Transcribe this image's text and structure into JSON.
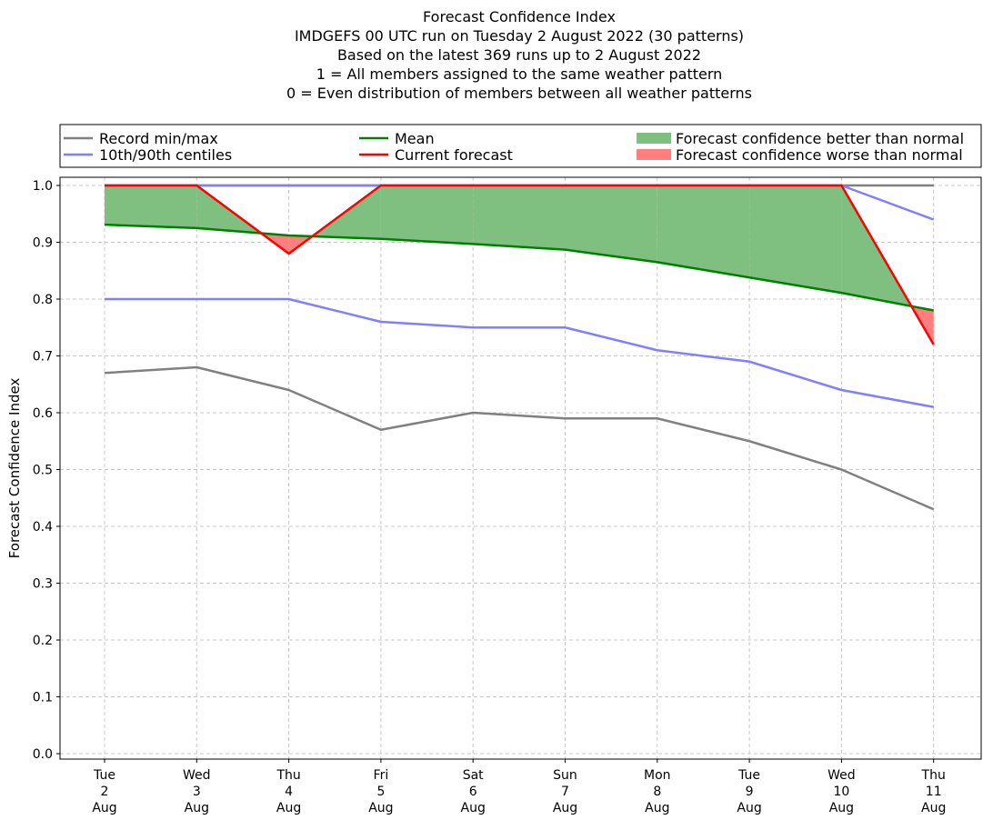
{
  "chart_data": {
    "type": "line",
    "title_lines": [
      "Forecast Confidence Index",
      "IMDGEFS 00 UTC run on Tuesday 2 August 2022 (30 patterns)",
      "Based on the latest 369 runs up to 2 August 2022",
      "1 = All members assigned to the same weather pattern",
      "0 = Even distribution of members between all weather patterns"
    ],
    "ylabel": "Forecast Confidence Index",
    "xlabel": "",
    "ylim": [
      0.0,
      1.0
    ],
    "yticks": [
      "0.0",
      "0.1",
      "0.2",
      "0.3",
      "0.4",
      "0.5",
      "0.6",
      "0.7",
      "0.8",
      "0.9",
      "1.0"
    ],
    "grid": true,
    "legend_position": "top, above plot",
    "categories": [
      [
        "Tue",
        "2",
        "Aug"
      ],
      [
        "Wed",
        "3",
        "Aug"
      ],
      [
        "Thu",
        "4",
        "Aug"
      ],
      [
        "Fri",
        "5",
        "Aug"
      ],
      [
        "Sat",
        "6",
        "Aug"
      ],
      [
        "Sun",
        "7",
        "Aug"
      ],
      [
        "Mon",
        "8",
        "Aug"
      ],
      [
        "Tue",
        "9",
        "Aug"
      ],
      [
        "Wed",
        "10",
        "Aug"
      ],
      [
        "Thu",
        "11",
        "Aug"
      ]
    ],
    "series": [
      {
        "name": "Record min/max",
        "key": "record_min",
        "color": "#808080",
        "values": [
          0.67,
          0.68,
          0.64,
          0.57,
          0.6,
          0.59,
          0.59,
          0.55,
          0.5,
          0.43
        ]
      },
      {
        "name": "Record min/max",
        "key": "record_max",
        "color": "#808080",
        "values": [
          1.0,
          1.0,
          1.0,
          1.0,
          1.0,
          1.0,
          1.0,
          1.0,
          1.0,
          1.0
        ]
      },
      {
        "name": "10th/90th centiles",
        "key": "p10",
        "color": "#7f7fff",
        "values": [
          0.8,
          0.8,
          0.8,
          0.76,
          0.75,
          0.75,
          0.71,
          0.69,
          0.64,
          0.61
        ]
      },
      {
        "name": "10th/90th centiles",
        "key": "p90",
        "color": "#7f7fff",
        "values": [
          1.0,
          1.0,
          1.0,
          1.0,
          1.0,
          1.0,
          1.0,
          1.0,
          1.0,
          0.94
        ]
      },
      {
        "name": "Mean",
        "key": "mean",
        "color": "#008000",
        "values": [
          0.931,
          0.925,
          0.912,
          0.906,
          0.897,
          0.887,
          0.865,
          0.838,
          0.811,
          0.78
        ]
      },
      {
        "name": "Current forecast",
        "key": "current",
        "color": "#ff0000",
        "values": [
          1.0,
          1.0,
          0.88,
          1.0,
          1.0,
          1.0,
          1.0,
          1.0,
          1.0,
          0.72
        ]
      }
    ],
    "fills": {
      "better": {
        "label": "Forecast confidence better than normal",
        "color": "#7fbf7f"
      },
      "worse": {
        "label": "Forecast confidence worse than normal",
        "color": "#ff7f7f"
      }
    },
    "legend": [
      {
        "label": "Record min/max",
        "kind": "line",
        "color": "#808080"
      },
      {
        "label": "10th/90th centiles",
        "kind": "line",
        "color": "#7f7fff"
      },
      {
        "label": "Mean",
        "kind": "line",
        "color": "#008000"
      },
      {
        "label": "Current forecast",
        "kind": "line",
        "color": "#ff0000"
      },
      {
        "label": "Forecast confidence better than normal",
        "kind": "patch",
        "color": "#7fbf7f"
      },
      {
        "label": "Forecast confidence worse than normal",
        "kind": "patch",
        "color": "#ff7f7f"
      }
    ]
  }
}
